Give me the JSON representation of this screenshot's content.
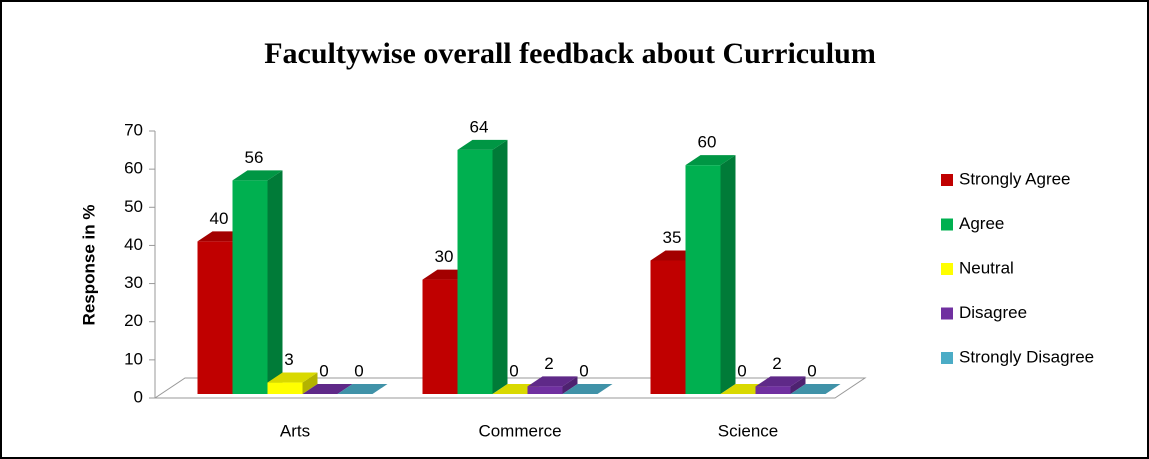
{
  "chart_data": {
    "type": "bar",
    "title": "Facultywise overall feedback about Curriculum",
    "y_label": "Response in %",
    "categories": [
      "Arts",
      "Commerce",
      "Science"
    ],
    "series": [
      {
        "name": "Strongly Agree",
        "color": "#c00000",
        "values": [
          40,
          30,
          35
        ]
      },
      {
        "name": "Agree",
        "color": "#00b050",
        "values": [
          56,
          64,
          60
        ]
      },
      {
        "name": "Neutral",
        "color": "#ffff00",
        "values": [
          3,
          0,
          0
        ]
      },
      {
        "name": "Disagree",
        "color": "#7030a0",
        "values": [
          0,
          2,
          2
        ]
      },
      {
        "name": "Strongly Disagree",
        "color": "#4bacc6",
        "values": [
          0,
          0,
          0
        ]
      }
    ],
    "ylim": [
      0,
      70
    ],
    "yticks": [
      0,
      10,
      20,
      30,
      40,
      50,
      60,
      70
    ],
    "legend": "right"
  }
}
